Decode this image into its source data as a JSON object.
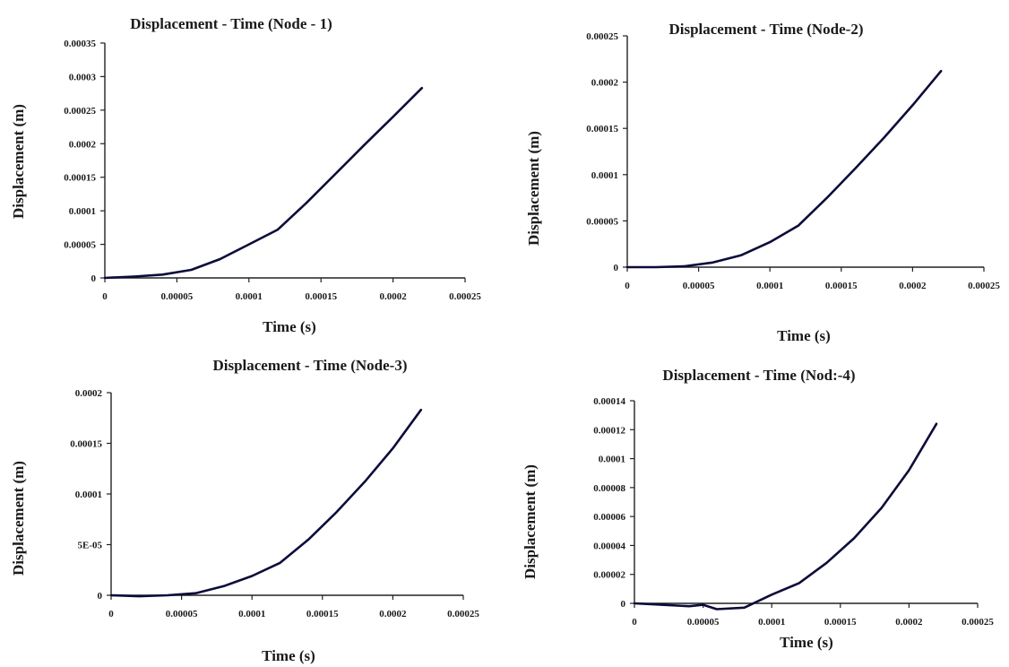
{
  "chart_data": [
    {
      "type": "line",
      "title": "Displacement - Time (Node - 1)",
      "xlabel": "Time (s)",
      "ylabel": "Displacement (m)",
      "xlim": [
        0,
        0.00025
      ],
      "ylim": [
        0,
        0.00035
      ],
      "x_ticks": [
        "0",
        "0.00005",
        "0.0001",
        "0.00015",
        "0.0002",
        "0.00025"
      ],
      "y_ticks": [
        "0",
        "0.00005",
        "0.0001",
        "0.00015",
        "0.0002",
        "0.00025",
        "0.0003",
        "0.00035"
      ],
      "grid": false,
      "series": [
        {
          "color": "#0c0c3a",
          "x": [
            0,
            2e-05,
            4e-05,
            6e-05,
            8e-05,
            0.0001,
            0.00012,
            0.00014,
            0.00016,
            0.00018,
            0.0002,
            0.00022
          ],
          "y": [
            0,
            2e-06,
            5e-06,
            1.2e-05,
            2.8e-05,
            5e-05,
            7.2e-05,
            0.000112,
            0.000155,
            0.000198,
            0.00024,
            0.000283
          ]
        }
      ]
    },
    {
      "type": "line",
      "title": "Displacement - Time (Node-2)",
      "xlabel": "Time (s)",
      "ylabel": "Displacement (m)",
      "xlim": [
        0,
        0.00025
      ],
      "ylim": [
        0,
        0.00025
      ],
      "x_ticks": [
        "0",
        "0.00005",
        "0.0001",
        "0.00015",
        "0.0002",
        "0.00025"
      ],
      "y_ticks": [
        "0",
        "0.00005",
        "0.0001",
        "0.00015",
        "0.0002",
        "0.00025"
      ],
      "grid": false,
      "series": [
        {
          "color": "#0c0c3a",
          "x": [
            0,
            2e-05,
            4e-05,
            6e-05,
            8e-05,
            0.0001,
            0.00012,
            0.00014,
            0.00016,
            0.00018,
            0.0002,
            0.00022
          ],
          "y": [
            0,
            0,
            1e-06,
            5e-06,
            1.3e-05,
            2.7e-05,
            4.5e-05,
            7.5e-05,
            0.000107,
            0.00014,
            0.000175,
            0.000212
          ]
        }
      ]
    },
    {
      "type": "line",
      "title": "Displacement - Time (Node-3)",
      "xlabel": "Time (s)",
      "ylabel": "Displacement (m)",
      "xlim": [
        0,
        0.00025
      ],
      "ylim": [
        0,
        0.0002
      ],
      "x_ticks": [
        "0",
        "0.00005",
        "0.0001",
        "0.00015",
        "0.0002",
        "0.00025"
      ],
      "y_ticks": [
        "0",
        "5E-05",
        "0.0001",
        "0.00015",
        "0.0002"
      ],
      "grid": false,
      "series": [
        {
          "color": "#0c0c3a",
          "x": [
            0,
            2e-05,
            4e-05,
            6e-05,
            8e-05,
            0.0001,
            0.00012,
            0.00014,
            0.00016,
            0.00018,
            0.0002,
            0.00022
          ],
          "y": [
            0,
            -1e-06,
            0,
            2e-06,
            9e-06,
            1.9e-05,
            3.2e-05,
            5.5e-05,
            8.2e-05,
            0.000112,
            0.000145,
            0.000183
          ]
        }
      ]
    },
    {
      "type": "line",
      "title": "Displacement - Time (Nod:-4)",
      "xlabel": "Time (s)",
      "ylabel": "Displacement (m)",
      "xlim": [
        0,
        0.00025
      ],
      "ylim": [
        0,
        0.00014
      ],
      "x_ticks": [
        "0",
        "0.00005",
        "0.0001",
        "0.00015",
        "0.0002",
        "0.00025"
      ],
      "x_tick_text": [
        "0",
        "0.00005",
        "0.0001",
        "0.00015",
        "0.0002",
        "0.00025"
      ],
      "y_ticks": [
        "0",
        "0.00002",
        "0.00004",
        "0.00006",
        "0.00008",
        "0.0001",
        "0.00012",
        "0.00014"
      ],
      "grid": false,
      "series": [
        {
          "color": "#0c0c3a",
          "x": [
            0,
            2e-05,
            4e-05,
            5e-05,
            6e-05,
            8e-05,
            0.0001,
            0.00012,
            0.00014,
            0.00016,
            0.00018,
            0.0002,
            0.00022
          ],
          "y": [
            0,
            -1e-06,
            -2e-06,
            -1e-06,
            -4e-06,
            -3e-06,
            6e-06,
            1.4e-05,
            2.8e-05,
            4.5e-05,
            6.6e-05,
            9.2e-05,
            0.000124
          ]
        }
      ]
    }
  ]
}
